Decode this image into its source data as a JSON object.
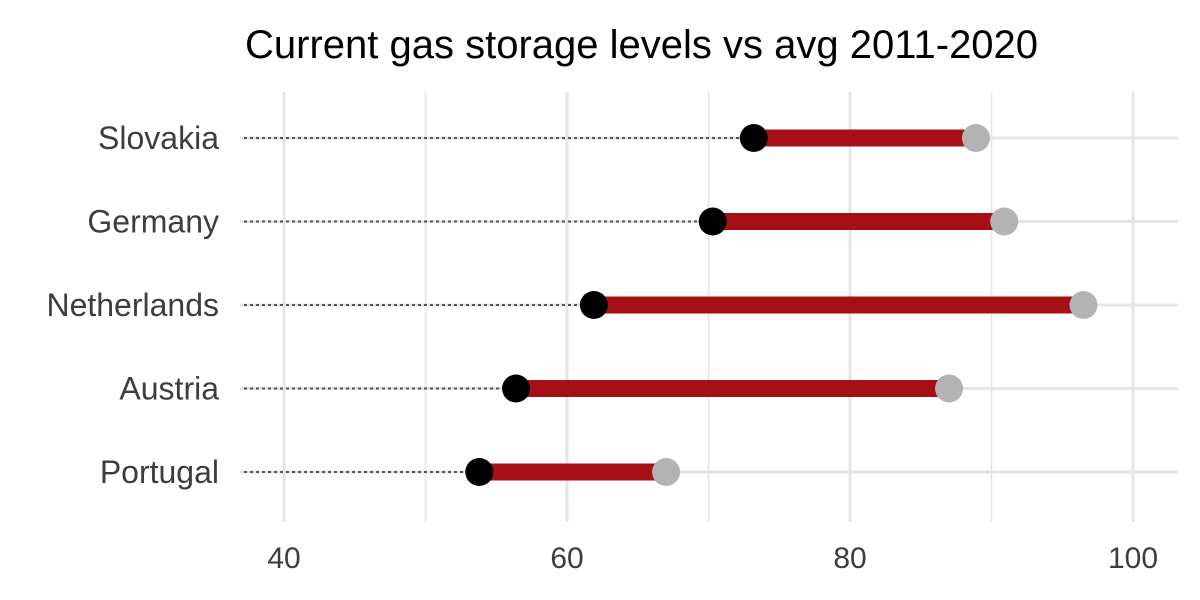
{
  "chart_data": {
    "type": "dumbbell",
    "title": "Current gas storage levels vs avg 2011-2020",
    "xlabel": "",
    "ylabel": "",
    "xlim": [
      36.8,
      103
    ],
    "x_ticks": [
      40,
      60,
      80,
      100
    ],
    "x_minor_ticks": [
      50,
      70,
      90
    ],
    "grid": true,
    "legend": "none",
    "categories": [
      "Slovakia",
      "Germany",
      "Netherlands",
      "Austria",
      "Portugal"
    ],
    "series": [
      {
        "key": "current",
        "values": [
          73.2,
          70.3,
          61.9,
          56.4,
          53.8
        ]
      },
      {
        "key": "avg_2011_2020",
        "values": [
          88.9,
          90.9,
          96.5,
          87.0,
          67.0
        ]
      }
    ],
    "colors": {
      "current": "#000000",
      "average": "#b3b3b3",
      "bar": "#a50f15",
      "leader": "#555555",
      "grid": "#e5e5e5"
    }
  }
}
